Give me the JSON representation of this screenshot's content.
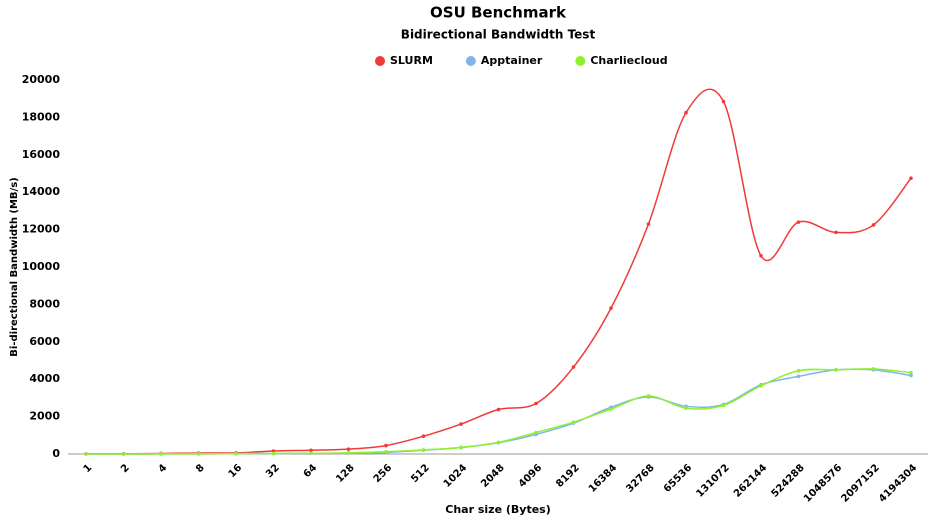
{
  "chart_data": {
    "type": "line",
    "title": "OSU Benchmark",
    "subtitle": "Bidirectional Bandwidth Test",
    "xlabel": "Char size (Bytes)",
    "ylabel": "Bi-directional Bandwidth (MB/s)",
    "categories": [
      "1",
      "2",
      "4",
      "8",
      "16",
      "32",
      "64",
      "128",
      "256",
      "512",
      "1024",
      "2048",
      "4096",
      "8192",
      "16384",
      "32768",
      "65536",
      "131072",
      "262144",
      "524288",
      "1048576",
      "2097152",
      "4194304"
    ],
    "series": [
      {
        "name": "SLURM",
        "color": "#f03a3a",
        "values": [
          5,
          10,
          30,
          50,
          60,
          160,
          200,
          260,
          450,
          950,
          1600,
          2380,
          2700,
          4650,
          7800,
          12300,
          18250,
          18850,
          10600,
          12400,
          11850,
          12250,
          14750
        ]
      },
      {
        "name": "Apptainer",
        "color": "#7fb5e8",
        "values": [
          0,
          0,
          5,
          10,
          20,
          30,
          40,
          50,
          80,
          200,
          350,
          600,
          1050,
          1650,
          2500,
          3050,
          2550,
          2650,
          3700,
          4150,
          4500,
          4500,
          4200
        ]
      },
      {
        "name": "Charliecloud",
        "color": "#8ef02e",
        "values": [
          0,
          0,
          5,
          10,
          20,
          30,
          40,
          60,
          120,
          220,
          350,
          620,
          1150,
          1700,
          2400,
          3100,
          2450,
          2600,
          3650,
          4450,
          4500,
          4550,
          4350
        ]
      }
    ],
    "ylim": [
      0,
      20000
    ],
    "yticks": [
      0,
      2000,
      4000,
      6000,
      8000,
      10000,
      12000,
      14000,
      16000,
      18000,
      20000
    ],
    "grid": false,
    "legend": "top"
  }
}
